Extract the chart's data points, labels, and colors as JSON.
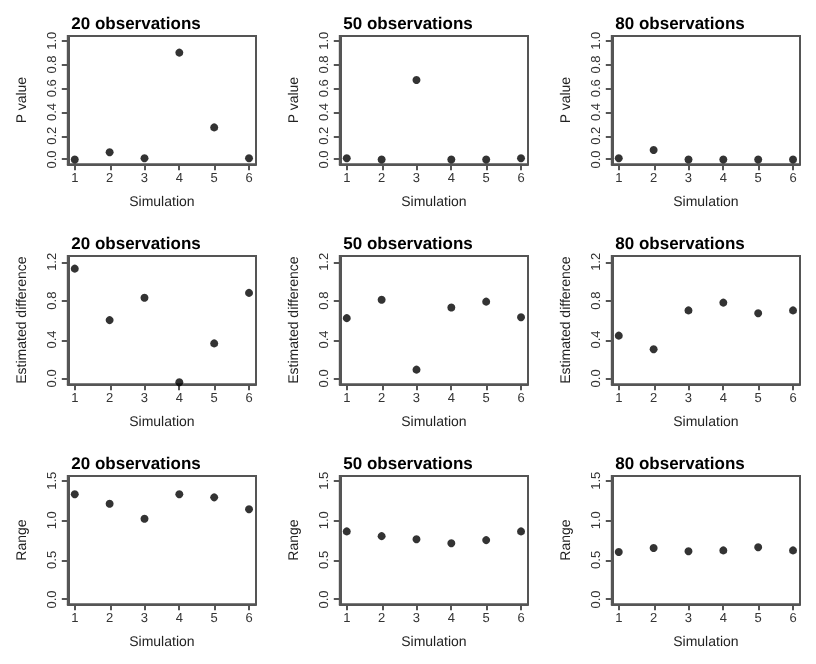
{
  "chart_data": [
    {
      "type": "scatter",
      "title": "20 observations",
      "xlabel": "Simulation",
      "ylabel": "P value",
      "x": [
        1,
        2,
        3,
        4,
        5,
        6
      ],
      "values": [
        0,
        0.06,
        0.01,
        0.9,
        0.27,
        0.01
      ],
      "color": "#000000",
      "marker": "circle",
      "xlim": [
        0.8,
        6.2
      ],
      "xticks": [
        1,
        2,
        3,
        4,
        5,
        6
      ],
      "ylim": [
        -0.04,
        1.04
      ],
      "yticks": [
        {
          "value": 0,
          "label": "0.0"
        },
        {
          "value": 0.2,
          "label": "0.2"
        },
        {
          "value": 0.4,
          "label": "0.4"
        },
        {
          "value": 0.6,
          "label": "0.6"
        },
        {
          "value": 0.8,
          "label": "0.8"
        },
        {
          "value": 1,
          "label": "1.0"
        }
      ]
    },
    {
      "type": "scatter",
      "title": "50 observations",
      "xlabel": "Simulation",
      "ylabel": "P value",
      "x": [
        1,
        2,
        3,
        4,
        5,
        6
      ],
      "values": [
        0.01,
        0,
        0.67,
        0,
        0,
        0.01
      ],
      "color": "#000000",
      "marker": "circle",
      "xlim": [
        0.8,
        6.2
      ],
      "xticks": [
        1,
        2,
        3,
        4,
        5,
        6
      ],
      "ylim": [
        -0.04,
        1.04
      ],
      "yticks": [
        {
          "value": 0,
          "label": "0.0"
        },
        {
          "value": 0.2,
          "label": "0.2"
        },
        {
          "value": 0.4,
          "label": "0.4"
        },
        {
          "value": 0.6,
          "label": "0.6"
        },
        {
          "value": 0.8,
          "label": "0.8"
        },
        {
          "value": 1,
          "label": "1.0"
        }
      ]
    },
    {
      "type": "scatter",
      "title": "80 observations",
      "xlabel": "Simulation",
      "ylabel": "P value",
      "x": [
        1,
        2,
        3,
        4,
        5,
        6
      ],
      "values": [
        0.01,
        0.08,
        0,
        0,
        0,
        0
      ],
      "color": "#000000",
      "marker": "circle",
      "xlim": [
        0.8,
        6.2
      ],
      "xticks": [
        1,
        2,
        3,
        4,
        5,
        6
      ],
      "ylim": [
        -0.04,
        1.04
      ],
      "yticks": [
        {
          "value": 0,
          "label": "0.0"
        },
        {
          "value": 0.2,
          "label": "0.2"
        },
        {
          "value": 0.4,
          "label": "0.4"
        },
        {
          "value": 0.6,
          "label": "0.6"
        },
        {
          "value": 0.8,
          "label": "0.8"
        },
        {
          "value": 1,
          "label": "1.0"
        }
      ]
    },
    {
      "type": "scatter",
      "title": "20 observations",
      "xlabel": "Simulation",
      "ylabel": "Estimated difference",
      "x": [
        1,
        2,
        3,
        4,
        5,
        6
      ],
      "values": [
        1.13,
        0.6,
        0.83,
        -0.04,
        0.36,
        0.88
      ],
      "color": "#000000",
      "marker": "circle",
      "xlim": [
        0.8,
        6.2
      ],
      "xticks": [
        1,
        2,
        3,
        4,
        5,
        6
      ],
      "ylim": [
        -0.06,
        1.26
      ],
      "yticks": [
        {
          "value": 0,
          "label": "0.0"
        },
        {
          "value": 0.4,
          "label": "0.4"
        },
        {
          "value": 0.8,
          "label": "0.8"
        },
        {
          "value": 1.2,
          "label": "1.2"
        }
      ]
    },
    {
      "type": "scatter",
      "title": "50 observations",
      "xlabel": "Simulation",
      "ylabel": "Estimated difference",
      "x": [
        1,
        2,
        3,
        4,
        5,
        6
      ],
      "values": [
        0.62,
        0.81,
        0.09,
        0.73,
        0.79,
        0.63
      ],
      "color": "#000000",
      "marker": "circle",
      "xlim": [
        0.8,
        6.2
      ],
      "xticks": [
        1,
        2,
        3,
        4,
        5,
        6
      ],
      "ylim": [
        -0.06,
        1.26
      ],
      "yticks": [
        {
          "value": 0,
          "label": "0.0"
        },
        {
          "value": 0.4,
          "label": "0.4"
        },
        {
          "value": 0.8,
          "label": "0.8"
        },
        {
          "value": 1.2,
          "label": "1.2"
        }
      ]
    },
    {
      "type": "scatter",
      "title": "80 observations",
      "xlabel": "Simulation",
      "ylabel": "Estimated difference",
      "x": [
        1,
        2,
        3,
        4,
        5,
        6
      ],
      "values": [
        0.44,
        0.3,
        0.7,
        0.78,
        0.67,
        0.7
      ],
      "color": "#000000",
      "marker": "circle",
      "xlim": [
        0.8,
        6.2
      ],
      "xticks": [
        1,
        2,
        3,
        4,
        5,
        6
      ],
      "ylim": [
        -0.06,
        1.26
      ],
      "yticks": [
        {
          "value": 0,
          "label": "0.0"
        },
        {
          "value": 0.4,
          "label": "0.4"
        },
        {
          "value": 0.8,
          "label": "0.8"
        },
        {
          "value": 1.2,
          "label": "1.2"
        }
      ]
    },
    {
      "type": "scatter",
      "title": "20 observations",
      "xlabel": "Simulation",
      "ylabel": "Range",
      "x": [
        1,
        2,
        3,
        4,
        5,
        6
      ],
      "values": [
        1.33,
        1.21,
        1.02,
        1.33,
        1.29,
        1.14
      ],
      "color": "#000000",
      "marker": "circle",
      "xlim": [
        0.8,
        6.2
      ],
      "xticks": [
        1,
        2,
        3,
        4,
        5,
        6
      ],
      "ylim": [
        -0.06,
        1.56
      ],
      "yticks": [
        {
          "value": 0,
          "label": "0.0"
        },
        {
          "value": 0.5,
          "label": "0.5"
        },
        {
          "value": 1,
          "label": "1.0"
        },
        {
          "value": 1.5,
          "label": "1.5"
        }
      ]
    },
    {
      "type": "scatter",
      "title": "50 observations",
      "xlabel": "Simulation",
      "ylabel": "Range",
      "x": [
        1,
        2,
        3,
        4,
        5,
        6
      ],
      "values": [
        0.86,
        0.8,
        0.76,
        0.71,
        0.75,
        0.86
      ],
      "color": "#000000",
      "marker": "circle",
      "xlim": [
        0.8,
        6.2
      ],
      "xticks": [
        1,
        2,
        3,
        4,
        5,
        6
      ],
      "ylim": [
        -0.06,
        1.56
      ],
      "yticks": [
        {
          "value": 0,
          "label": "0.0"
        },
        {
          "value": 0.5,
          "label": "0.5"
        },
        {
          "value": 1,
          "label": "1.0"
        },
        {
          "value": 1.5,
          "label": "1.5"
        }
      ]
    },
    {
      "type": "scatter",
      "title": "80 observations",
      "xlabel": "Simulation",
      "ylabel": "Range",
      "x": [
        1,
        2,
        3,
        4,
        5,
        6
      ],
      "values": [
        0.6,
        0.65,
        0.61,
        0.62,
        0.66,
        0.62
      ],
      "color": "#000000",
      "marker": "circle",
      "xlim": [
        0.8,
        6.2
      ],
      "xticks": [
        1,
        2,
        3,
        4,
        5,
        6
      ],
      "ylim": [
        -0.06,
        1.56
      ],
      "yticks": [
        {
          "value": 0,
          "label": "0.0"
        },
        {
          "value": 0.5,
          "label": "0.5"
        },
        {
          "value": 1,
          "label": "1.0"
        },
        {
          "value": 1.5,
          "label": "1.5"
        }
      ]
    }
  ]
}
